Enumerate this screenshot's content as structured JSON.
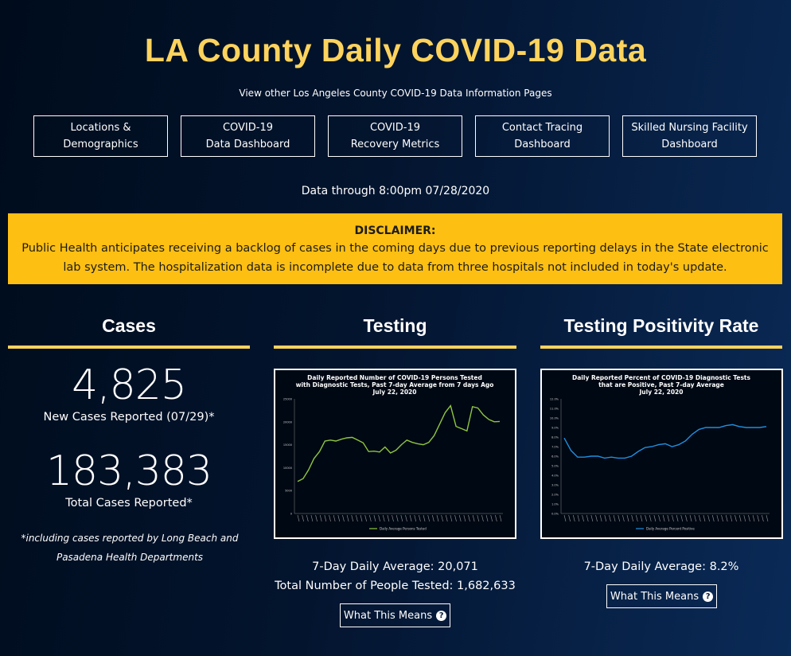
{
  "page": {
    "title": "LA County Daily COVID-19 Data",
    "subtitle": "View other Los Angeles County COVID-19 Data Information Pages",
    "data_through": "Data through 8:00pm 07/28/2020"
  },
  "nav": [
    {
      "label": "Locations &\nDemographics"
    },
    {
      "label": "COVID-19\nData Dashboard"
    },
    {
      "label": "COVID-19\nRecovery Metrics"
    },
    {
      "label": "Contact Tracing\nDashboard"
    },
    {
      "label": "Skilled Nursing Facility\nDashboard"
    }
  ],
  "disclaimer": {
    "heading": "DISCLAIMER:",
    "text": "Public Health anticipates receiving a backlog of cases in the coming days due to previous reporting delays in the State electronic lab system. The hospitalization data is incomplete due to data from three hospitals not included in today's update."
  },
  "cases": {
    "heading": "Cases",
    "new_cases": "4,825",
    "new_cases_label": "New Cases Reported (07/29)*",
    "total_cases": "183,383",
    "total_cases_label": "Total Cases Reported*",
    "footnote": "*including cases reported by Long Beach and Pasadena Health Departments"
  },
  "testing": {
    "heading": "Testing",
    "avg": "7-Day Daily Average: 20,071",
    "total": "Total Number of People Tested: 1,682,633",
    "button": "What This Means"
  },
  "positivity": {
    "heading": "Testing Positivity Rate",
    "avg": "7-Day Daily Average: 8.2%",
    "button": "What This Means"
  },
  "colors": {
    "accent": "#fdd35d",
    "disclaimer_bg": "#fdbf12",
    "testing_line": "#8dc63f",
    "positivity_line": "#1f8fe0"
  },
  "chart_data": [
    {
      "type": "line",
      "title": "Daily Reported Number of COVID-19 Persons Tested\nwith Diagnostic Tests, Past 7-day Average from 7 days Ago\nJuly 22, 2020",
      "ylim": [
        0,
        25000
      ],
      "yticks": [
        "0",
        "5000",
        "10000",
        "15000",
        "20000",
        "25000"
      ],
      "legend": "Daily Average Persons Tested",
      "series": [
        {
          "values": [
            7000,
            7600,
            9500,
            12000,
            13500,
            15800,
            16000,
            15800,
            16200,
            16500,
            16600,
            16000,
            15400,
            13500,
            13600,
            13400,
            14500,
            13200,
            13800,
            15000,
            16000,
            15500,
            15200,
            15000,
            15500,
            17000,
            19500,
            22000,
            23500,
            19000,
            18500,
            18000,
            23300,
            23000,
            21500,
            20500,
            20000,
            20071
          ]
        }
      ]
    },
    {
      "type": "line",
      "title": "Daily Reported Percent of COVID-19 Diagnostic Tests\nthat are Positive, Past 7-day Average\nJuly 22, 2020",
      "ylim": [
        0,
        12
      ],
      "yticks": [
        "0.0%",
        "1.0%",
        "2.0%",
        "3.0%",
        "4.0%",
        "5.0%",
        "6.0%",
        "7.0%",
        "8.0%",
        "9.0%",
        "10.0%",
        "11.0%",
        "12.0%"
      ],
      "legend": "Daily Average Percent Positive",
      "series": [
        {
          "values": [
            7.9,
            6.6,
            5.9,
            5.9,
            6.0,
            6.0,
            5.8,
            5.9,
            5.8,
            5.8,
            6.0,
            6.5,
            6.9,
            7.0,
            7.2,
            7.3,
            7.0,
            7.2,
            7.6,
            8.3,
            8.8,
            9.0,
            9.0,
            9.0,
            9.2,
            9.3,
            9.1,
            9.0,
            9.0,
            9.0,
            9.1
          ]
        }
      ]
    }
  ]
}
